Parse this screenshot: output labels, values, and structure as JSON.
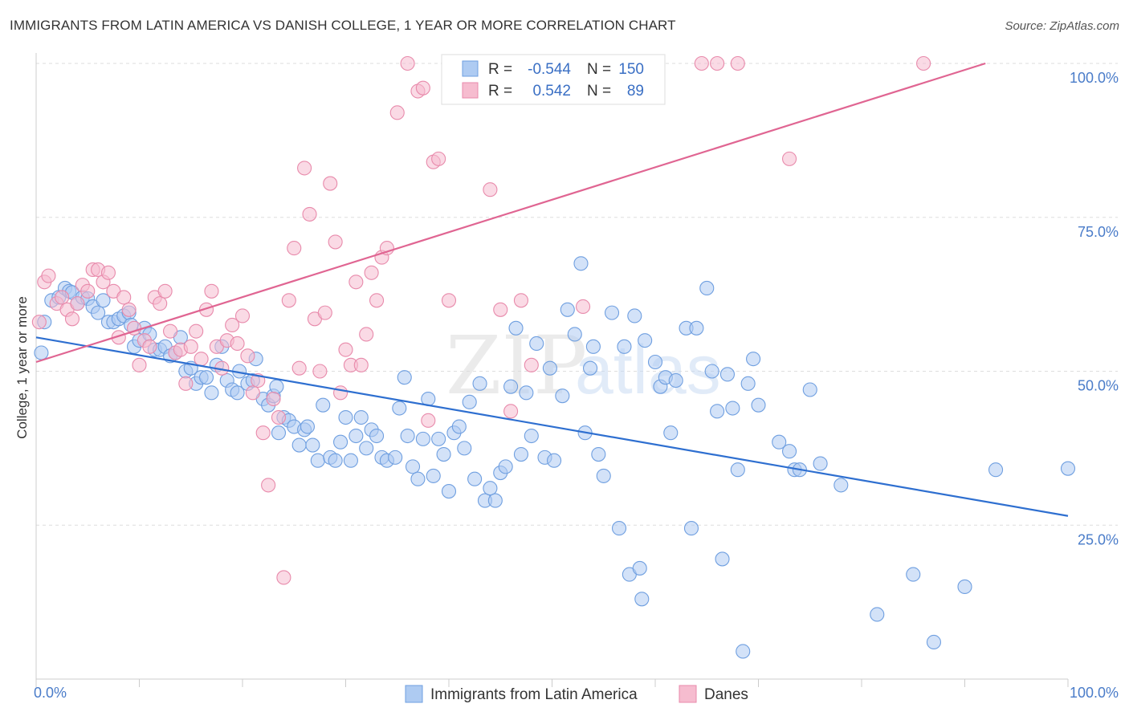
{
  "title": "IMMIGRANTS FROM LATIN AMERICA VS DANISH COLLEGE, 1 YEAR OR MORE CORRELATION CHART",
  "source": "Source: ZipAtlas.com",
  "watermark": {
    "zip": "ZIP",
    "atlas": "atlas"
  },
  "legend_top": [
    {
      "r_label": "R =",
      "r_value": "-0.544",
      "n_label": "N =",
      "n_value": "150"
    },
    {
      "r_label": "R =",
      "r_value": "0.542",
      "n_label": "N =",
      "n_value": "89"
    }
  ],
  "chart_data": {
    "type": "scatter",
    "ylabel": "College, 1 year or more",
    "xlim": [
      0,
      100
    ],
    "ylim": [
      0,
      100
    ],
    "x_tick_labels": [
      "0.0%",
      "100.0%"
    ],
    "y_tick_labels": [
      {
        "value": 100,
        "label": "100.0%"
      },
      {
        "value": 75,
        "label": "75.0%"
      },
      {
        "value": 50,
        "label": "50.0%"
      },
      {
        "value": 25,
        "label": "25.0%"
      }
    ],
    "grid": true,
    "series": [
      {
        "name": "Immigrants from Latin America",
        "color": "#6f9fe0",
        "fill": "#aecbf2",
        "trend": {
          "x": [
            0,
            100
          ],
          "y": [
            55.5,
            26.5
          ],
          "color": "#2e6fd0"
        },
        "points": [
          [
            0.5,
            53
          ],
          [
            0.8,
            58
          ],
          [
            1.5,
            61.5
          ],
          [
            2.2,
            62
          ],
          [
            2.8,
            63.5
          ],
          [
            3.2,
            63
          ],
          [
            3.5,
            62.8
          ],
          [
            4.0,
            61
          ],
          [
            4.5,
            62
          ],
          [
            5.0,
            61.8
          ],
          [
            5.5,
            60.5
          ],
          [
            6.0,
            59.5
          ],
          [
            6.5,
            61.5
          ],
          [
            7.0,
            58
          ],
          [
            7.5,
            58
          ],
          [
            8.0,
            58.5
          ],
          [
            8.5,
            59
          ],
          [
            9.0,
            59.5
          ],
          [
            9.2,
            57.5
          ],
          [
            9.5,
            54
          ],
          [
            10,
            55
          ],
          [
            10.5,
            57
          ],
          [
            11,
            56
          ],
          [
            11.5,
            53.5
          ],
          [
            12,
            53.5
          ],
          [
            12.5,
            54
          ],
          [
            13,
            52.5
          ],
          [
            13.5,
            53
          ],
          [
            14,
            55.5
          ],
          [
            14.5,
            50
          ],
          [
            15,
            50.5
          ],
          [
            15.5,
            48
          ],
          [
            16,
            49
          ],
          [
            16.5,
            49
          ],
          [
            17,
            46.5
          ],
          [
            17.5,
            51
          ],
          [
            18,
            54
          ],
          [
            18.5,
            48.5
          ],
          [
            19,
            47
          ],
          [
            19.5,
            46.5
          ],
          [
            19.7,
            50
          ],
          [
            20.5,
            48
          ],
          [
            21,
            48.5
          ],
          [
            21.3,
            52
          ],
          [
            22,
            45.5
          ],
          [
            22.5,
            44.5
          ],
          [
            23,
            46
          ],
          [
            23.3,
            47.5
          ],
          [
            23.5,
            40
          ],
          [
            24,
            42.5
          ],
          [
            24.5,
            42
          ],
          [
            25,
            41
          ],
          [
            25.5,
            38
          ],
          [
            26,
            40.5
          ],
          [
            26.3,
            41
          ],
          [
            26.8,
            38
          ],
          [
            27.3,
            35.5
          ],
          [
            27.8,
            44.5
          ],
          [
            28.5,
            36
          ],
          [
            29,
            35.5
          ],
          [
            29.5,
            38.5
          ],
          [
            30,
            42.5
          ],
          [
            30.5,
            35.5
          ],
          [
            31,
            39.5
          ],
          [
            31.5,
            42.5
          ],
          [
            32,
            37.5
          ],
          [
            32.5,
            40.5
          ],
          [
            33,
            39.5
          ],
          [
            33.5,
            36
          ],
          [
            34,
            35.5
          ],
          [
            34.8,
            36
          ],
          [
            35.2,
            44
          ],
          [
            35.7,
            49
          ],
          [
            36,
            39.5
          ],
          [
            36.5,
            34.5
          ],
          [
            37,
            32.5
          ],
          [
            37.5,
            39
          ],
          [
            38,
            45.5
          ],
          [
            38.5,
            33
          ],
          [
            39,
            39
          ],
          [
            39.5,
            36.5
          ],
          [
            40,
            30.5
          ],
          [
            40.5,
            40
          ],
          [
            41,
            41
          ],
          [
            41.5,
            37.5
          ],
          [
            42,
            45
          ],
          [
            42.5,
            32.5
          ],
          [
            43,
            48
          ],
          [
            43.5,
            29
          ],
          [
            44,
            31
          ],
          [
            44.5,
            29
          ],
          [
            45,
            33.5
          ],
          [
            45.5,
            34.5
          ],
          [
            46,
            47.5
          ],
          [
            46.5,
            57
          ],
          [
            47,
            36.5
          ],
          [
            47.5,
            46.5
          ],
          [
            48,
            39.5
          ],
          [
            48.5,
            54.5
          ],
          [
            49.3,
            36
          ],
          [
            49.8,
            50.5
          ],
          [
            50.2,
            35.5
          ],
          [
            51,
            46
          ],
          [
            51.5,
            60
          ],
          [
            52.2,
            56
          ],
          [
            52.8,
            67.5
          ],
          [
            53.2,
            40
          ],
          [
            53.7,
            50.5
          ],
          [
            54,
            54
          ],
          [
            54.5,
            36.5
          ],
          [
            55,
            33
          ],
          [
            55.8,
            59.5
          ],
          [
            56.5,
            24.5
          ],
          [
            57,
            54
          ],
          [
            57.5,
            17
          ],
          [
            58,
            59
          ],
          [
            58.5,
            18
          ],
          [
            58.7,
            13
          ],
          [
            59,
            55
          ],
          [
            60,
            51.5
          ],
          [
            60.5,
            47.5
          ],
          [
            61,
            49
          ],
          [
            61.5,
            40
          ],
          [
            62,
            48.5
          ],
          [
            63,
            57
          ],
          [
            63.5,
            24.5
          ],
          [
            64,
            57
          ],
          [
            65,
            63.5
          ],
          [
            65.5,
            50
          ],
          [
            66,
            43.5
          ],
          [
            66.5,
            19.5
          ],
          [
            67,
            49.5
          ],
          [
            67.5,
            44
          ],
          [
            68,
            34
          ],
          [
            68.5,
            4.5
          ],
          [
            69,
            48
          ],
          [
            69.5,
            52
          ],
          [
            70,
            44.5
          ],
          [
            72,
            38.5
          ],
          [
            73,
            37
          ],
          [
            73.5,
            34
          ],
          [
            74,
            34
          ],
          [
            75,
            47
          ],
          [
            76,
            35
          ],
          [
            78,
            31.5
          ],
          [
            81.5,
            10.5
          ],
          [
            85,
            17
          ],
          [
            87,
            6
          ],
          [
            90,
            15
          ],
          [
            93,
            34
          ],
          [
            100,
            34.2
          ]
        ]
      },
      {
        "name": "Danes",
        "color": "#e88aab",
        "fill": "#f6bccf",
        "trend": {
          "x": [
            0,
            92
          ],
          "y": [
            51.5,
            100
          ],
          "color": "#e06592"
        },
        "points": [
          [
            0.3,
            58
          ],
          [
            0.8,
            64.5
          ],
          [
            1.2,
            65.5
          ],
          [
            2.0,
            61
          ],
          [
            2.5,
            62
          ],
          [
            3.0,
            60
          ],
          [
            3.5,
            58.5
          ],
          [
            4.0,
            61
          ],
          [
            4.5,
            64
          ],
          [
            5.0,
            63
          ],
          [
            5.5,
            66.5
          ],
          [
            6.0,
            66.5
          ],
          [
            6.5,
            64.5
          ],
          [
            7.0,
            66
          ],
          [
            7.5,
            63
          ],
          [
            8.0,
            55.5
          ],
          [
            8.5,
            62
          ],
          [
            9.0,
            60
          ],
          [
            9.5,
            57
          ],
          [
            10,
            51
          ],
          [
            10.5,
            55
          ],
          [
            11,
            54
          ],
          [
            11.5,
            62
          ],
          [
            12,
            61
          ],
          [
            12.5,
            63
          ],
          [
            13,
            56.5
          ],
          [
            13.5,
            53
          ],
          [
            14,
            53.5
          ],
          [
            14.5,
            48
          ],
          [
            15,
            54
          ],
          [
            15.5,
            56.5
          ],
          [
            16,
            52
          ],
          [
            16.5,
            60
          ],
          [
            17,
            63
          ],
          [
            17.5,
            54
          ],
          [
            18,
            50.5
          ],
          [
            18.5,
            55
          ],
          [
            19,
            57.5
          ],
          [
            19.5,
            54.5
          ],
          [
            20,
            59
          ],
          [
            20.5,
            52.5
          ],
          [
            21,
            46.5
          ],
          [
            21.5,
            48.5
          ],
          [
            22,
            40
          ],
          [
            22.5,
            31.5
          ],
          [
            23,
            45.5
          ],
          [
            23.5,
            42.5
          ],
          [
            24,
            16.5
          ],
          [
            24.5,
            61.5
          ],
          [
            25,
            70
          ],
          [
            25.5,
            50.5
          ],
          [
            26,
            83
          ],
          [
            26.5,
            75.5
          ],
          [
            27,
            58.5
          ],
          [
            27.5,
            50
          ],
          [
            28,
            59.5
          ],
          [
            28.5,
            80.5
          ],
          [
            29,
            71
          ],
          [
            29.5,
            46.5
          ],
          [
            30,
            53.5
          ],
          [
            30.5,
            51
          ],
          [
            31,
            64.5
          ],
          [
            31.5,
            51
          ],
          [
            32,
            56
          ],
          [
            32.5,
            66
          ],
          [
            33,
            61.5
          ],
          [
            33.5,
            68.5
          ],
          [
            34,
            70
          ],
          [
            35,
            92
          ],
          [
            36,
            100
          ],
          [
            37,
            95.5
          ],
          [
            37.5,
            96
          ],
          [
            38,
            42
          ],
          [
            38.5,
            84
          ],
          [
            39,
            84.5
          ],
          [
            40,
            61.5
          ],
          [
            41,
            100
          ],
          [
            42,
            100
          ],
          [
            43,
            100
          ],
          [
            44,
            79.5
          ],
          [
            45,
            60
          ],
          [
            46,
            43.5
          ],
          [
            47,
            61.5
          ],
          [
            48,
            51
          ],
          [
            53,
            60.5
          ],
          [
            55,
            100
          ],
          [
            64.5,
            100
          ],
          [
            66,
            100
          ],
          [
            68,
            100
          ],
          [
            73,
            84.5
          ],
          [
            86,
            100
          ]
        ]
      }
    ]
  },
  "legend_bottom": [
    {
      "label": "Immigrants from Latin America"
    },
    {
      "label": "Danes"
    }
  ]
}
